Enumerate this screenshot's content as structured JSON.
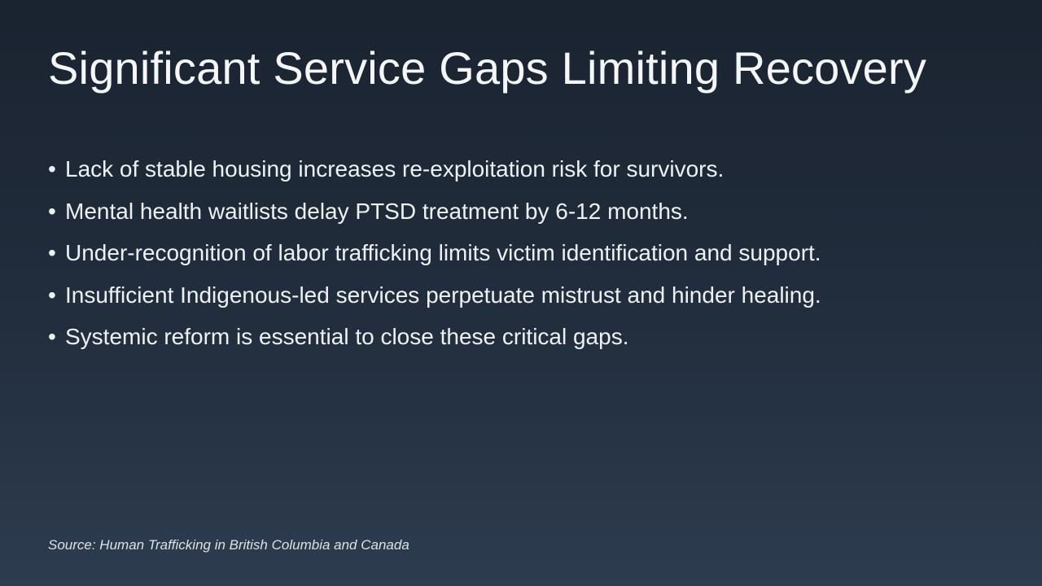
{
  "slide": {
    "title": "Significant Service Gaps Limiting Recovery",
    "bullets": [
      "Lack of stable housing increases re-exploitation risk for survivors.",
      "Mental health waitlists delay PTSD treatment by 6-12 months.",
      "Under-recognition of labor trafficking limits victim identification and support.",
      "Insufficient Indigenous-led services perpetuate mistrust and hinder healing.",
      "Systemic reform is essential to close these critical gaps."
    ],
    "source": "Source: Human Trafficking in British Columbia and Canada",
    "colors": {
      "background_top": "#1a2330",
      "background_bottom": "#2d3c4f",
      "title_text": "#f4f6f8",
      "body_text": "#eef1f4",
      "source_text": "#dce1e7"
    }
  }
}
